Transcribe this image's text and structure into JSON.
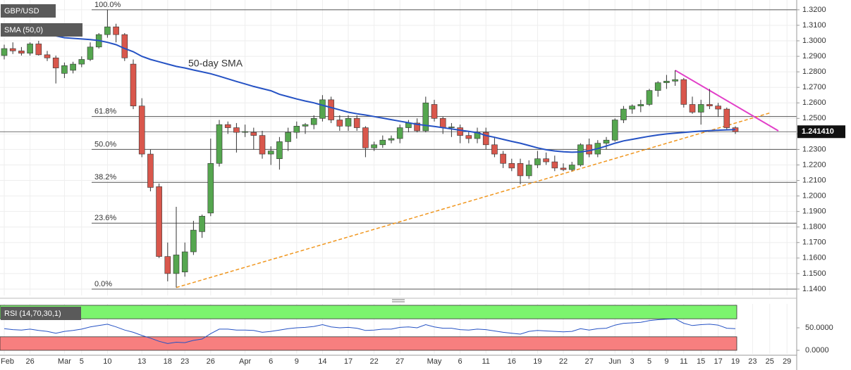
{
  "chart_data": {
    "type": "candlestick",
    "title": "GBP/USD",
    "categories": [
      "Feb",
      null,
      null,
      "26",
      null,
      null,
      null,
      "Mar",
      null,
      "5",
      null,
      null,
      "10",
      null,
      null,
      null,
      "13",
      null,
      null,
      "18",
      null,
      "23",
      null,
      null,
      "26",
      null,
      null,
      null,
      "Apr",
      null,
      null,
      "6",
      null,
      null,
      "9",
      null,
      null,
      "14",
      null,
      null,
      "17",
      null,
      null,
      "22",
      null,
      null,
      "27",
      null,
      null,
      null,
      "May",
      null,
      null,
      "6",
      null,
      null,
      "11",
      null,
      null,
      "16",
      null,
      null,
      "19",
      null,
      null,
      "22",
      null,
      null,
      "27",
      null,
      null,
      "Jun",
      null,
      "3",
      null,
      "5",
      null,
      "9",
      null,
      "11",
      null,
      "15",
      null,
      "17",
      null,
      "19",
      null,
      "23",
      null,
      "25",
      null,
      "29"
    ],
    "open": [
      1.2905,
      1.295,
      1.2935,
      1.292,
      1.298,
      1.291,
      1.289,
      1.279,
      1.281,
      1.285,
      1.288,
      1.296,
      1.304,
      1.309,
      1.304,
      1.285,
      1.258,
      1.227,
      1.206,
      1.161,
      1.15,
      1.151,
      1.164,
      1.177,
      1.189,
      1.221,
      1.246,
      1.244,
      1.241,
      1.241,
      1.239,
      1.227,
      1.224,
      1.235,
      1.241,
      1.245,
      1.246,
      1.25,
      1.262,
      1.249,
      1.245,
      1.25,
      1.244,
      1.231,
      1.233,
      1.236,
      1.237,
      1.244,
      1.247,
      1.242,
      1.259,
      1.25,
      1.244,
      1.244,
      1.239,
      1.237,
      1.241,
      1.233,
      1.227,
      1.221,
      1.221,
      1.213,
      1.22,
      1.224,
      1.222,
      1.218,
      1.217,
      1.22,
      1.233,
      1.227,
      1.234,
      1.236,
      1.249,
      1.256,
      1.258,
      1.259,
      1.268,
      1.273,
      1.274,
      1.275,
      1.259,
      1.254,
      1.259,
      1.258,
      1.256,
      1.244,
      null,
      null,
      null,
      null,
      null,
      null
    ],
    "high": [
      1.2975,
      1.299,
      1.296,
      1.299,
      1.3,
      1.2935,
      1.2905,
      1.286,
      1.2865,
      1.29,
      1.299,
      1.305,
      1.32,
      1.311,
      1.305,
      1.288,
      1.263,
      1.23,
      1.208,
      1.17,
      1.193,
      1.17,
      1.184,
      1.188,
      1.237,
      1.249,
      1.248,
      1.247,
      1.246,
      1.244,
      1.242,
      1.232,
      1.238,
      1.244,
      1.248,
      1.247,
      1.252,
      1.265,
      1.264,
      1.252,
      1.252,
      1.252,
      1.245,
      1.235,
      1.239,
      1.239,
      1.246,
      1.249,
      1.25,
      1.264,
      1.262,
      1.251,
      1.247,
      1.246,
      1.242,
      1.244,
      1.244,
      1.238,
      1.229,
      1.224,
      1.224,
      1.223,
      1.229,
      1.228,
      1.226,
      1.221,
      1.222,
      1.234,
      1.237,
      1.236,
      1.238,
      1.25,
      1.258,
      1.259,
      1.262,
      1.269,
      1.274,
      1.278,
      1.281,
      1.276,
      1.264,
      1.262,
      1.269,
      1.26,
      1.257,
      1.245,
      null,
      null,
      null,
      null,
      null,
      null
    ],
    "low": [
      1.288,
      1.2915,
      1.2905,
      1.2905,
      1.2905,
      1.287,
      1.2725,
      1.276,
      1.279,
      1.283,
      1.287,
      1.295,
      1.302,
      1.299,
      1.287,
      1.256,
      1.225,
      1.203,
      1.16,
      1.145,
      1.141,
      1.148,
      1.162,
      1.173,
      1.187,
      1.219,
      1.24,
      1.228,
      1.238,
      1.23,
      1.224,
      1.22,
      1.217,
      1.229,
      1.237,
      1.24,
      1.243,
      1.248,
      1.247,
      1.242,
      1.242,
      1.242,
      1.225,
      1.229,
      1.231,
      1.234,
      1.234,
      1.241,
      1.241,
      1.241,
      1.248,
      1.24,
      1.238,
      1.234,
      1.234,
      1.234,
      1.23,
      1.225,
      1.218,
      1.216,
      1.2075,
      1.211,
      1.218,
      1.22,
      1.216,
      1.216,
      1.216,
      1.219,
      1.225,
      1.225,
      1.23,
      1.235,
      1.247,
      1.253,
      1.254,
      1.258,
      1.264,
      1.269,
      1.271,
      1.257,
      1.253,
      1.246,
      1.256,
      1.251,
      1.243,
      1.24,
      null,
      null,
      null,
      null,
      null,
      null
    ],
    "close": [
      1.295,
      1.2935,
      1.292,
      1.298,
      1.291,
      1.289,
      1.2825,
      1.284,
      1.285,
      1.288,
      1.296,
      1.304,
      1.309,
      1.304,
      1.289,
      1.258,
      1.227,
      1.2055,
      1.161,
      1.15,
      1.162,
      1.164,
      1.178,
      1.187,
      1.221,
      1.246,
      1.244,
      1.241,
      1.2415,
      1.239,
      1.227,
      1.229,
      1.235,
      1.241,
      1.245,
      1.246,
      1.25,
      1.262,
      1.249,
      1.245,
      1.25,
      1.244,
      1.231,
      1.233,
      1.236,
      1.237,
      1.244,
      1.247,
      1.242,
      1.26,
      1.25,
      1.244,
      1.2445,
      1.239,
      1.237,
      1.241,
      1.233,
      1.227,
      1.221,
      1.218,
      1.213,
      1.22,
      1.224,
      1.222,
      1.218,
      1.217,
      1.22,
      1.233,
      1.227,
      1.234,
      1.236,
      1.249,
      1.256,
      1.258,
      1.259,
      1.268,
      1.273,
      1.274,
      1.275,
      1.259,
      1.254,
      1.259,
      1.258,
      1.256,
      1.244,
      1.2414,
      null,
      null,
      null,
      null,
      null,
      null
    ],
    "up_color": "#55a64f",
    "down_color": "#d9574c",
    "ylim": [
      1.1359,
      1.3263
    ],
    "yticks": [
      {
        "value": 1.14,
        "label": "1.1400"
      },
      {
        "value": 1.15,
        "label": "1.1500"
      },
      {
        "value": 1.16,
        "label": "1.1600"
      },
      {
        "value": 1.17,
        "label": "1.1700"
      },
      {
        "value": 1.18,
        "label": "1.1800"
      },
      {
        "value": 1.19,
        "label": "1.1900"
      },
      {
        "value": 1.2,
        "label": "1.2000"
      },
      {
        "value": 1.21,
        "label": "1.2100"
      },
      {
        "value": 1.22,
        "label": "1.2200"
      },
      {
        "value": 1.23,
        "label": "1.2300"
      },
      {
        "value": 1.24,
        "label": "1.2400"
      },
      {
        "value": 1.25,
        "label": "1.2500"
      },
      {
        "value": 1.26,
        "label": "1.2600"
      },
      {
        "value": 1.27,
        "label": "1.2700"
      },
      {
        "value": 1.28,
        "label": "1.2800"
      },
      {
        "value": 1.29,
        "label": "1.2900"
      },
      {
        "value": 1.3,
        "label": "1.3000"
      },
      {
        "value": 1.31,
        "label": "1.3100"
      },
      {
        "value": 1.32,
        "label": "1.3200"
      }
    ],
    "grid": true,
    "last_price": {
      "value": 1.24141,
      "label": "1.241410"
    },
    "sma": {
      "name": "SMA (50,0)",
      "color": "#2552c4",
      "annotation": "50-day SMA",
      "values": [
        1.3045,
        1.3043,
        1.3041,
        1.3039,
        1.3037,
        1.3035,
        1.3032,
        1.302,
        1.3016,
        1.3012,
        1.3008,
        1.3002,
        1.299,
        1.2975,
        1.295,
        1.293,
        1.29,
        1.288,
        1.2865,
        1.285,
        1.2835,
        1.2825,
        1.2812,
        1.28,
        1.2788,
        1.2772,
        1.2755,
        1.2738,
        1.2722,
        1.2706,
        1.2692,
        1.2678,
        1.2655,
        1.264,
        1.2625,
        1.2612,
        1.26,
        1.2585,
        1.257,
        1.2555,
        1.254,
        1.253,
        1.2522,
        1.2512,
        1.2502,
        1.2492,
        1.2482,
        1.2472,
        1.2462,
        1.2455,
        1.2448,
        1.244,
        1.2432,
        1.2424,
        1.2416,
        1.2408,
        1.239,
        1.2378,
        1.2365,
        1.2352,
        1.234,
        1.2325,
        1.231,
        1.2298,
        1.229,
        1.2285,
        1.2282,
        1.2284,
        1.2292,
        1.2305,
        1.2322,
        1.234,
        1.2355,
        1.2365,
        1.2375,
        1.2385,
        1.2393,
        1.24,
        1.2405,
        1.241,
        1.2414,
        1.2418,
        1.2421,
        1.2424,
        1.2426,
        1.2428,
        null,
        null,
        null,
        null,
        null,
        null
      ]
    },
    "fib_levels": [
      {
        "value": 1.32,
        "label": "100.0%"
      },
      {
        "value": 1.2512,
        "label": "61.8%"
      },
      {
        "value": 1.23,
        "label": "50.0%"
      },
      {
        "value": 1.2088,
        "label": "38.2%"
      },
      {
        "value": 1.1825,
        "label": "23.6%"
      },
      {
        "value": 1.14,
        "label": "0.0%"
      }
    ],
    "trendlines": [
      {
        "color": "#f0961e",
        "dashed": true,
        "x": [
          20,
          89
        ],
        "y": [
          1.141,
          1.2535
        ]
      },
      {
        "color": "#e23fc8",
        "dashed": false,
        "x": [
          78,
          90
        ],
        "y": [
          1.281,
          1.242
        ]
      }
    ],
    "rsi": {
      "name": "RSI (14,70,30,1)",
      "color": "#2552c4",
      "values": [
        48,
        46,
        45,
        47,
        44,
        42,
        38,
        42,
        44,
        47,
        52,
        55,
        58,
        52,
        45,
        40,
        33,
        27,
        20,
        15,
        18,
        17,
        22,
        25,
        37,
        47,
        47,
        45,
        45,
        44,
        40,
        42,
        45,
        48,
        50,
        51,
        53,
        57,
        52,
        50,
        51,
        49,
        44,
        45,
        47,
        47,
        51,
        52,
        50,
        57,
        52,
        49,
        49,
        46,
        45,
        47,
        46,
        43,
        40,
        38,
        36,
        42,
        44,
        43,
        42,
        41,
        42,
        48,
        45,
        48,
        49,
        56,
        60,
        61,
        62,
        66,
        68,
        69,
        70,
        60,
        55,
        57,
        58,
        56,
        49,
        48,
        null,
        null,
        null,
        null,
        null,
        null
      ],
      "ylim": [
        0,
        100
      ],
      "yticks": [
        {
          "value": 50,
          "label": "50.0000"
        },
        {
          "value": 0,
          "label": "0.0000"
        }
      ],
      "bands": [
        {
          "from": 70,
          "to": 100,
          "color": "#7cf46e"
        },
        {
          "from": 0,
          "to": 30,
          "color": "#f77f7f"
        }
      ]
    }
  }
}
